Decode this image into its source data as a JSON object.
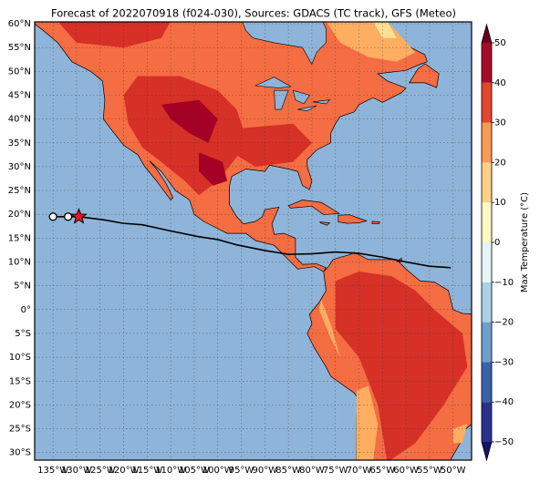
{
  "title": "Forecast of 2022070918 (f024-030), Sources: GDACS (TC track), GFS (Meteo)",
  "map": {
    "lat_labels": [
      "60°N",
      "55°N",
      "50°N",
      "45°N",
      "40°N",
      "35°N",
      "30°N",
      "25°N",
      "20°N",
      "15°N",
      "10°N",
      "5°N",
      "0°",
      "5°S",
      "10°S",
      "15°S",
      "20°S",
      "25°S",
      "30°S"
    ],
    "lon_labels": [
      "135°W",
      "130°W",
      "125°W",
      "120°W",
      "115°W",
      "110°W",
      "105°W",
      "100°W",
      "95°W",
      "90°W",
      "85°W",
      "80°W",
      "75°W",
      "70°W",
      "65°W",
      "60°W",
      "55°W",
      "50°W"
    ]
  },
  "colorbar": {
    "label": "Max Temperature (°C)",
    "ticks": [
      {
        "value": -50,
        "label": "−50"
      },
      {
        "value": -40,
        "label": "−40"
      },
      {
        "value": -30,
        "label": "−30"
      },
      {
        "value": -20,
        "label": "−20"
      },
      {
        "value": -10,
        "label": "−10"
      },
      0,
      10,
      20,
      30,
      40,
      50
    ],
    "colors": [
      "#2b2f8e",
      "#3a62a8",
      "#6f9fcb",
      "#a9d0e6",
      "#e6f4f8",
      "#fff9c4",
      "#fdd08a",
      "#f99a55",
      "#e2462e",
      "#a80a26"
    ],
    "under_color": "#15136b",
    "over_color": "#6a0020"
  }
}
